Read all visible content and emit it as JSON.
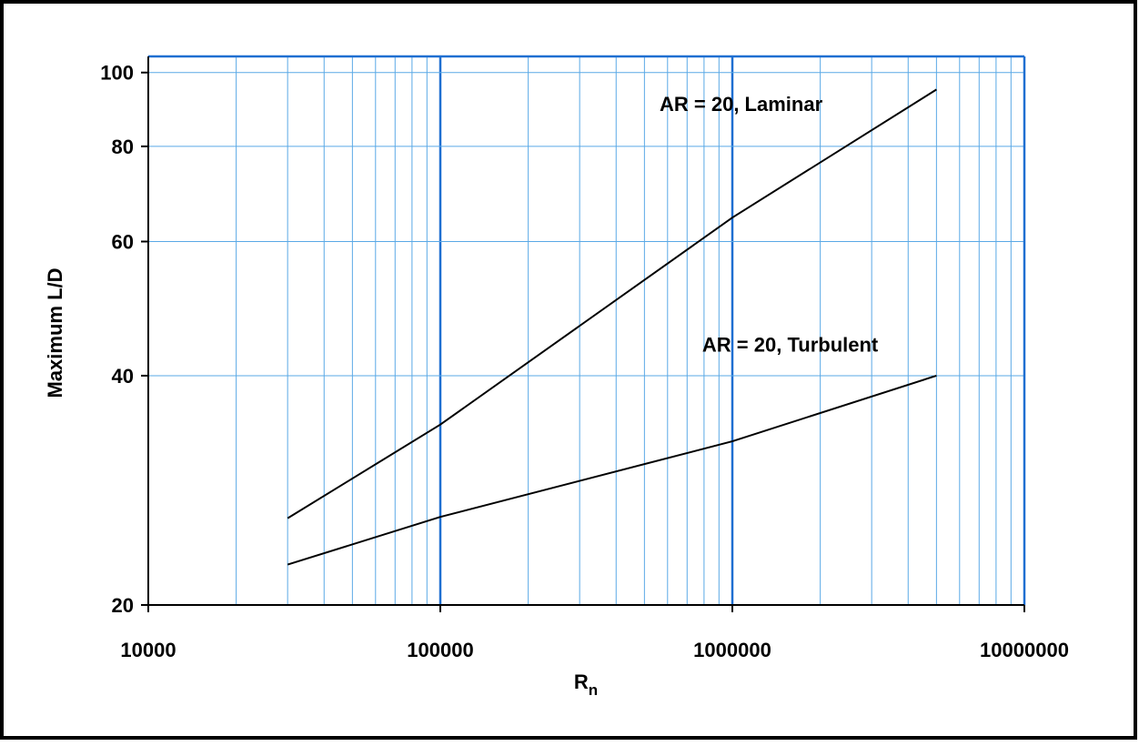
{
  "chart_data": {
    "type": "line",
    "title": "",
    "xlabel": "R",
    "xlabel_subscript": "n",
    "ylabel": "Maximum L/D",
    "x_scale": "log",
    "y_scale": "log",
    "xlim": [
      10000,
      10000000
    ],
    "ylim": [
      20,
      105
    ],
    "x_ticks": [
      {
        "value": 10000,
        "label": "10000"
      },
      {
        "value": 100000,
        "label": "100000"
      },
      {
        "value": 1000000,
        "label": "1000000"
      },
      {
        "value": 10000000,
        "label": "10000000"
      }
    ],
    "y_ticks": [
      {
        "value": 20,
        "label": "20"
      },
      {
        "value": 40,
        "label": "40"
      },
      {
        "value": 60,
        "label": "60"
      },
      {
        "value": 80,
        "label": "80"
      },
      {
        "value": 100,
        "label": "100"
      }
    ],
    "grid": true,
    "grid_color": "#5aa9e6",
    "major_grid_color": "#1f6fd1",
    "line_color": "#000000",
    "series": [
      {
        "x": [
          30000,
          100000,
          1000000,
          5000000
        ],
        "y": [
          26,
          34.5,
          64.5,
          95
        ]
      },
      {
        "x": [
          30000,
          100000,
          1000000,
          5000000
        ],
        "y": [
          22.6,
          26.1,
          32.8,
          40
        ]
      }
    ],
    "annotations": [
      {
        "text": "AR = 20,  Laminar",
        "x": 1000000,
        "y": 89
      },
      {
        "text": "AR = 20,  Turbulent",
        "x": 1400000,
        "y": 43
      }
    ]
  }
}
